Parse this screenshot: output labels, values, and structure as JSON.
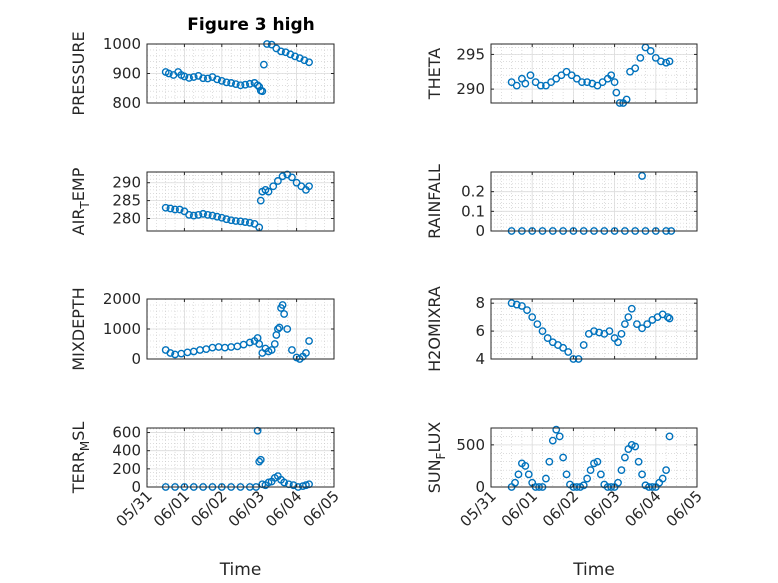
{
  "figure": {
    "title": "Figure 3 high",
    "marker_color": "#0072BD"
  },
  "chart_data": [
    {
      "type": "scatter",
      "ylabel": "PRESSURE",
      "ylabel_sub": null,
      "ylim": [
        800,
        1000
      ],
      "yticks": [
        800,
        900,
        1000
      ],
      "xlim": [
        "05/31",
        "06/05"
      ],
      "xticks": [
        "05/31",
        "06/01",
        "06/02",
        "06/03",
        "06/04",
        "06/05"
      ],
      "xticklabels_visible": false,
      "xlabel": "",
      "series": [
        {
          "x": [
            "05/31 12:00",
            "05/31 14:00",
            "05/31 17:00",
            "05/31 20:00",
            "05/31 22:00",
            "06/01 00:00",
            "06/01 03:00",
            "06/01 06:00",
            "06/01 09:00",
            "06/01 12:00",
            "06/01 15:00",
            "06/01 18:00",
            "06/01 21:00",
            "06/02 00:00",
            "06/02 03:00",
            "06/02 06:00",
            "06/02 09:00",
            "06/02 12:00",
            "06/02 15:00",
            "06/02 18:00",
            "06/02 21:00",
            "06/02 23:00",
            "06/03 00:00",
            "06/03 01:00",
            "06/03 02:00",
            "06/03 03:00",
            "06/03 05:00",
            "06/03 08:00",
            "06/03 11:00",
            "06/03 14:00",
            "06/03 17:00",
            "06/03 20:00",
            "06/03 23:00",
            "06/04 02:00",
            "06/04 05:00",
            "06/04 08:00"
          ],
          "y": [
            905,
            900,
            895,
            905,
            895,
            890,
            885,
            888,
            892,
            884,
            883,
            888,
            880,
            875,
            870,
            868,
            864,
            860,
            862,
            865,
            868,
            860,
            855,
            842,
            840,
            930,
            1000,
            998,
            985,
            975,
            972,
            965,
            958,
            952,
            945,
            938
          ]
        }
      ]
    },
    {
      "type": "scatter",
      "ylabel": "THETA",
      "ylabel_sub": null,
      "ylim": [
        288,
        296.5
      ],
      "yticks": [
        290,
        295
      ],
      "xlim": [
        "05/31",
        "06/05"
      ],
      "xticks": [
        "05/31",
        "06/01",
        "06/02",
        "06/03",
        "06/04",
        "06/05"
      ],
      "xticklabels_visible": false,
      "xlabel": "",
      "series": [
        {
          "x": [
            "05/31 12:00",
            "05/31 15:00",
            "05/31 18:00",
            "05/31 20:00",
            "05/31 23:00",
            "06/01 02:00",
            "06/01 05:00",
            "06/01 08:00",
            "06/01 11:00",
            "06/01 14:00",
            "06/01 17:00",
            "06/01 20:00",
            "06/01 23:00",
            "06/02 02:00",
            "06/02 05:00",
            "06/02 08:00",
            "06/02 11:00",
            "06/02 14:00",
            "06/02 17:00",
            "06/02 20:00",
            "06/02 22:00",
            "06/03 00:00",
            "06/03 01:00",
            "06/03 03:00",
            "06/03 05:00",
            "06/03 07:00",
            "06/03 09:00",
            "06/03 12:00",
            "06/03 15:00",
            "06/03 18:00",
            "06/03 21:00",
            "06/04 00:00",
            "06/04 03:00",
            "06/04 06:00",
            "06/04 08:00"
          ],
          "y": [
            291,
            290.5,
            291.5,
            290.8,
            292,
            291,
            290.5,
            290.5,
            291,
            291.5,
            292,
            292.5,
            292,
            291.5,
            291,
            291,
            290.8,
            290.5,
            291,
            291.5,
            292,
            291,
            289.5,
            288,
            288,
            288.5,
            292.5,
            293,
            294.5,
            296,
            295.5,
            294.5,
            294,
            293.8,
            294
          ]
        }
      ]
    },
    {
      "type": "scatter",
      "ylabel": "AIR",
      "ylabel_sub": "T",
      "ylabel_suffix": "EMP",
      "ylim": [
        276.5,
        293
      ],
      "yticks": [
        280,
        285,
        290
      ],
      "xlim": [
        "05/31",
        "06/05"
      ],
      "xticks": [
        "05/31",
        "06/01",
        "06/02",
        "06/03",
        "06/04",
        "06/05"
      ],
      "xticklabels_visible": false,
      "xlabel": "",
      "series": [
        {
          "x": [
            "05/31 12:00",
            "05/31 15:00",
            "05/31 18:00",
            "05/31 21:00",
            "06/01 00:00",
            "06/01 03:00",
            "06/01 06:00",
            "06/01 09:00",
            "06/01 12:00",
            "06/01 15:00",
            "06/01 18:00",
            "06/01 21:00",
            "06/02 00:00",
            "06/02 03:00",
            "06/02 06:00",
            "06/02 09:00",
            "06/02 12:00",
            "06/02 15:00",
            "06/02 18:00",
            "06/02 21:00",
            "06/03 00:00",
            "06/03 01:00",
            "06/03 02:00",
            "06/03 04:00",
            "06/03 06:00",
            "06/03 09:00",
            "06/03 12:00",
            "06/03 15:00",
            "06/03 18:00",
            "06/03 21:00",
            "06/04 00:00",
            "06/04 03:00",
            "06/04 06:00",
            "06/04 08:00"
          ],
          "y": [
            283,
            282.8,
            282.5,
            282.5,
            282,
            281,
            280.8,
            281,
            281.3,
            281,
            280.8,
            280.5,
            280.2,
            279.8,
            279.5,
            279.3,
            279.2,
            279,
            278.8,
            278.5,
            277.5,
            285,
            287.5,
            288,
            287.5,
            289,
            290.5,
            291.8,
            292.3,
            291.5,
            290,
            289,
            288,
            289
          ]
        }
      ]
    },
    {
      "type": "scatter",
      "ylabel": "RAINFALL",
      "ylabel_sub": null,
      "ylim": [
        0,
        0.3
      ],
      "yticks": [
        0,
        0.1,
        0.2
      ],
      "xlim": [
        "05/31",
        "06/05"
      ],
      "xticks": [
        "05/31",
        "06/01",
        "06/02",
        "06/03",
        "06/04",
        "06/05"
      ],
      "xticklabels_visible": false,
      "xlabel": "",
      "series": [
        {
          "x": [
            "05/31 12:00",
            "05/31 18:00",
            "06/01 00:00",
            "06/01 06:00",
            "06/01 12:00",
            "06/01 18:00",
            "06/02 00:00",
            "06/02 06:00",
            "06/02 12:00",
            "06/02 18:00",
            "06/03 00:00",
            "06/03 06:00",
            "06/03 12:00",
            "06/03 16:00",
            "06/03 18:00",
            "06/04 00:00",
            "06/04 06:00",
            "06/04 09:00"
          ],
          "y": [
            0,
            0,
            0,
            0,
            0,
            0,
            0,
            0,
            0,
            0,
            0,
            0,
            0,
            0.28,
            0,
            0,
            0,
            0
          ]
        }
      ]
    },
    {
      "type": "scatter",
      "ylabel": "MIXDEPTH",
      "ylabel_sub": null,
      "ylim": [
        0,
        2000
      ],
      "yticks": [
        0,
        1000,
        2000
      ],
      "xlim": [
        "05/31",
        "06/05"
      ],
      "xticks": [
        "05/31",
        "06/01",
        "06/02",
        "06/03",
        "06/04",
        "06/05"
      ],
      "xticklabels_visible": false,
      "xlabel": "",
      "series": [
        {
          "x": [
            "05/31 12:00",
            "05/31 15:00",
            "05/31 18:00",
            "05/31 22:00",
            "06/01 02:00",
            "06/01 06:00",
            "06/01 10:00",
            "06/01 14:00",
            "06/01 18:00",
            "06/01 22:00",
            "06/02 02:00",
            "06/02 06:00",
            "06/02 10:00",
            "06/02 14:00",
            "06/02 18:00",
            "06/02 21:00",
            "06/02 23:00",
            "06/03 00:00",
            "06/03 02:00",
            "06/03 04:00",
            "06/03 06:00",
            "06/03 08:00",
            "06/03 10:00",
            "06/03 11:00",
            "06/03 12:00",
            "06/03 13:00",
            "06/03 14:00",
            "06/03 15:00",
            "06/03 16:00",
            "06/03 18:00",
            "06/03 21:00",
            "06/04 00:00",
            "06/04 02:00",
            "06/04 04:00",
            "06/04 06:00",
            "06/04 08:00"
          ],
          "y": [
            300,
            200,
            150,
            180,
            220,
            250,
            300,
            330,
            380,
            400,
            380,
            400,
            420,
            480,
            550,
            600,
            700,
            500,
            200,
            350,
            250,
            300,
            500,
            800,
            1000,
            1050,
            1700,
            1800,
            1500,
            1000,
            300,
            50,
            0,
            80,
            200,
            600
          ]
        }
      ]
    },
    {
      "type": "scatter",
      "ylabel": "H2OMIXRA",
      "ylabel_sub": null,
      "ylim": [
        4,
        8.3
      ],
      "yticks": [
        4,
        6,
        8
      ],
      "xlim": [
        "05/31",
        "06/05"
      ],
      "xticks": [
        "05/31",
        "06/01",
        "06/02",
        "06/03",
        "06/04",
        "06/05"
      ],
      "xticklabels_visible": false,
      "xlabel": "",
      "series": [
        {
          "x": [
            "05/31 12:00",
            "05/31 15:00",
            "05/31 18:00",
            "05/31 21:00",
            "06/01 00:00",
            "06/01 03:00",
            "06/01 06:00",
            "06/01 09:00",
            "06/01 12:00",
            "06/01 15:00",
            "06/01 18:00",
            "06/01 21:00",
            "06/02 00:00",
            "06/02 03:00",
            "06/02 06:00",
            "06/02 09:00",
            "06/02 12:00",
            "06/02 15:00",
            "06/02 18:00",
            "06/02 21:00",
            "06/03 00:00",
            "06/03 02:00",
            "06/03 04:00",
            "06/03 06:00",
            "06/03 08:00",
            "06/03 10:00",
            "06/03 13:00",
            "06/03 16:00",
            "06/03 19:00",
            "06/03 22:00",
            "06/04 01:00",
            "06/04 04:00",
            "06/04 07:00",
            "06/04 08:00"
          ],
          "y": [
            8,
            7.9,
            7.8,
            7.5,
            7,
            6.5,
            6,
            5.5,
            5.2,
            5,
            4.8,
            4.5,
            4,
            4,
            5,
            5.8,
            6,
            5.9,
            5.8,
            6,
            5.5,
            5.2,
            5.8,
            6.5,
            7,
            7.6,
            6.5,
            6.2,
            6.5,
            6.8,
            7,
            7.2,
            7,
            6.9
          ]
        }
      ]
    },
    {
      "type": "scatter",
      "ylabel": "TERR",
      "ylabel_sub": "M",
      "ylabel_suffix": "SL",
      "ylim": [
        0,
        650
      ],
      "yticks": [
        0,
        200,
        400,
        600
      ],
      "xlim": [
        "05/31",
        "06/05"
      ],
      "xticks": [
        "05/31",
        "06/01",
        "06/02",
        "06/03",
        "06/04",
        "06/05"
      ],
      "xticklabels_visible": true,
      "xlabel": "Time",
      "series": [
        {
          "x": [
            "05/31 12:00",
            "05/31 18:00",
            "06/01 00:00",
            "06/01 06:00",
            "06/01 12:00",
            "06/01 18:00",
            "06/02 00:00",
            "06/02 06:00",
            "06/02 12:00",
            "06/02 18:00",
            "06/02 22:00",
            "06/02 23:00",
            "06/03 00:00",
            "06/03 01:00",
            "06/03 02:00",
            "06/03 04:00",
            "06/03 06:00",
            "06/03 08:00",
            "06/03 10:00",
            "06/03 12:00",
            "06/03 14:00",
            "06/03 16:00",
            "06/03 19:00",
            "06/03 22:00",
            "06/04 01:00",
            "06/04 04:00",
            "06/04 06:00",
            "06/04 08:00"
          ],
          "y": [
            0,
            0,
            0,
            0,
            0,
            0,
            0,
            0,
            0,
            0,
            0,
            620,
            280,
            300,
            30,
            20,
            50,
            60,
            100,
            120,
            80,
            50,
            30,
            20,
            0,
            10,
            20,
            30
          ]
        }
      ]
    },
    {
      "type": "scatter",
      "ylabel": "SUN",
      "ylabel_sub": "F",
      "ylabel_suffix": "LUX",
      "ylim": [
        0,
        700
      ],
      "yticks": [
        0,
        500
      ],
      "xlim": [
        "05/31",
        "06/05"
      ],
      "xticks": [
        "05/31",
        "06/01",
        "06/02",
        "06/03",
        "06/04",
        "06/05"
      ],
      "xticklabels_visible": true,
      "xlabel": "Time",
      "series": [
        {
          "x": [
            "05/31 12:00",
            "05/31 14:00",
            "05/31 16:00",
            "05/31 18:00",
            "05/31 20:00",
            "05/31 22:00",
            "06/01 00:00",
            "06/01 02:00",
            "06/01 04:00",
            "06/01 06:00",
            "06/01 08:00",
            "06/01 10:00",
            "06/01 12:00",
            "06/01 14:00",
            "06/01 16:00",
            "06/01 18:00",
            "06/01 20:00",
            "06/01 22:00",
            "06/02 00:00",
            "06/02 02:00",
            "06/02 04:00",
            "06/02 06:00",
            "06/02 08:00",
            "06/02 10:00",
            "06/02 12:00",
            "06/02 14:00",
            "06/02 16:00",
            "06/02 18:00",
            "06/02 20:00",
            "06/02 22:00",
            "06/03 00:00",
            "06/03 02:00",
            "06/03 04:00",
            "06/03 06:00",
            "06/03 08:00",
            "06/03 10:00",
            "06/03 12:00",
            "06/03 14:00",
            "06/03 16:00",
            "06/03 18:00",
            "06/03 20:00",
            "06/03 22:00",
            "06/04 00:00",
            "06/04 02:00",
            "06/04 04:00",
            "06/04 06:00",
            "06/04 08:00"
          ],
          "y": [
            0,
            50,
            150,
            280,
            250,
            150,
            50,
            0,
            0,
            0,
            100,
            300,
            550,
            680,
            600,
            350,
            150,
            30,
            0,
            0,
            0,
            20,
            100,
            200,
            280,
            300,
            150,
            30,
            0,
            0,
            0,
            50,
            200,
            350,
            450,
            500,
            480,
            300,
            150,
            20,
            0,
            0,
            0,
            50,
            100,
            200,
            600
          ]
        }
      ]
    }
  ]
}
